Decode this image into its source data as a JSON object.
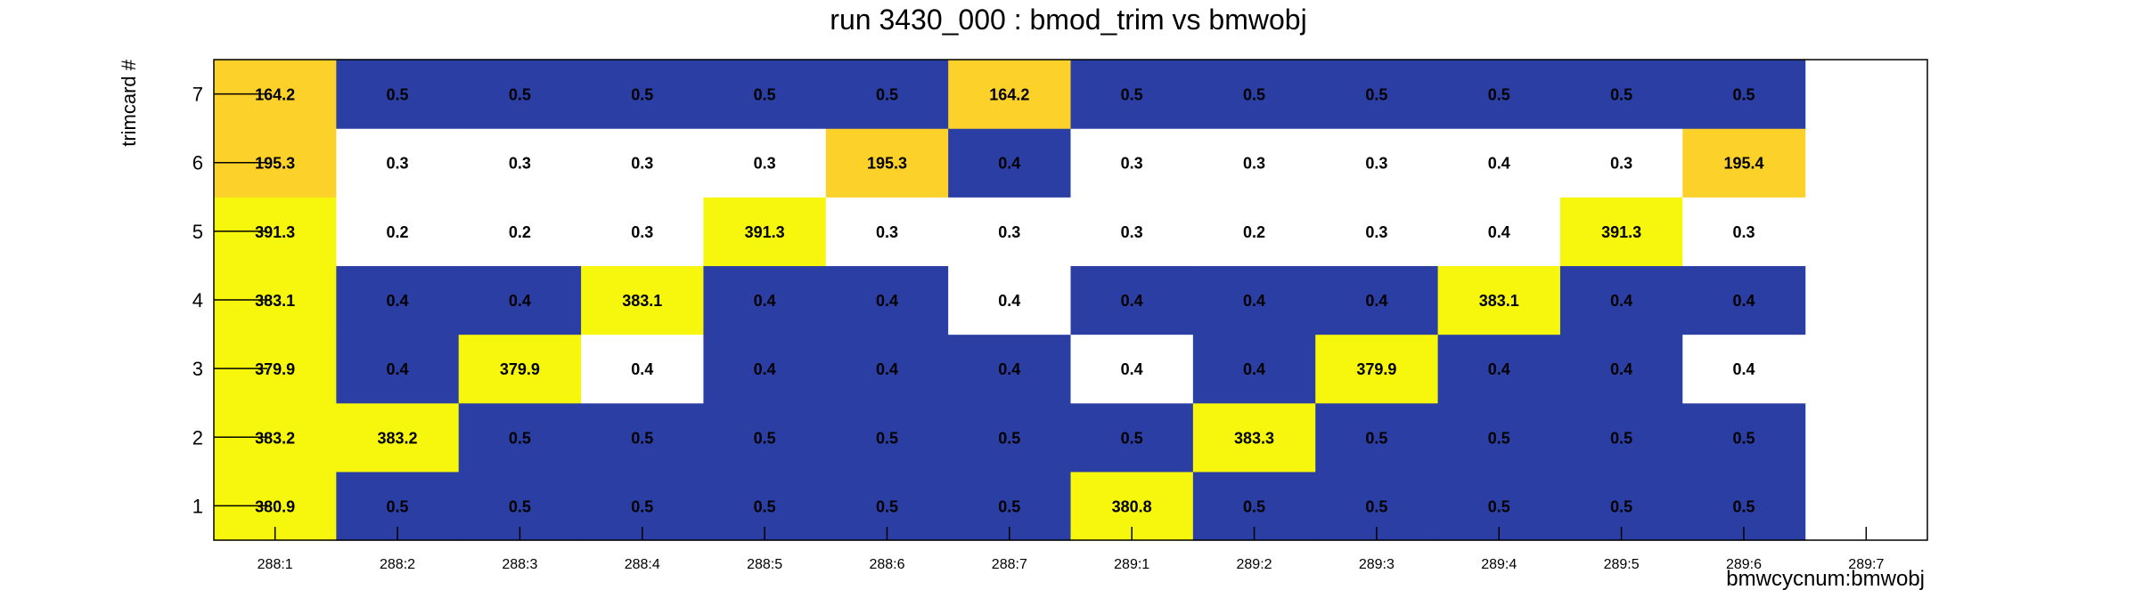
{
  "chart_data": {
    "type": "heatmap",
    "title": "run 3430_000 : bmod_trim vs bmwobj",
    "xlabel": "bmwcycnum:bmwobj",
    "ylabel": "trimcard #",
    "x_categories": [
      "288:1",
      "288:2",
      "288:3",
      "288:4",
      "288:5",
      "288:6",
      "288:7",
      "289:1",
      "289:2",
      "289:3",
      "289:4",
      "289:5",
      "289:6",
      "289:7"
    ],
    "y_categories": [
      "1",
      "2",
      "3",
      "4",
      "5",
      "6",
      "7"
    ],
    "grid": false,
    "legend": "none",
    "colors": {
      "low": "#2b3ea3",
      "white": "#ffffff",
      "mid": "#fcd12a",
      "high": "#f7f70d",
      "frame": "#000000"
    },
    "values": [
      [
        "380.9",
        "383.2",
        "379.9",
        "383.1",
        "391.3",
        "195.3",
        "164.2"
      ],
      [
        "0.5",
        "383.2",
        "0.4",
        "0.4",
        "0.2",
        "0.3",
        "0.5"
      ],
      [
        "0.5",
        "0.5",
        "379.9",
        "0.4",
        "0.2",
        "0.3",
        "0.5"
      ],
      [
        "0.5",
        "0.5",
        "0.4",
        "383.1",
        "0.3",
        "0.3",
        "0.5"
      ],
      [
        "0.5",
        "0.5",
        "0.4",
        "0.4",
        "391.3",
        "0.3",
        "0.5"
      ],
      [
        "0.5",
        "0.5",
        "0.4",
        "0.4",
        "0.3",
        "195.3",
        "0.5"
      ],
      [
        "0.5",
        "0.5",
        "0.4",
        "0.4",
        "0.3",
        "0.4",
        "164.2"
      ],
      [
        "380.8",
        "0.5",
        "0.4",
        "0.4",
        "0.3",
        "0.3",
        "0.5"
      ],
      [
        "0.5",
        "383.3",
        "0.4",
        "0.4",
        "0.2",
        "0.3",
        "0.5"
      ],
      [
        "0.5",
        "0.5",
        "379.9",
        "0.4",
        "0.3",
        "0.3",
        "0.5"
      ],
      [
        "0.5",
        "0.5",
        "0.4",
        "383.1",
        "0.4",
        "0.4",
        "0.5"
      ],
      [
        "0.5",
        "0.5",
        "0.4",
        "0.4",
        "391.3",
        "0.3",
        "0.5"
      ],
      [
        "0.5",
        "0.5",
        "0.4",
        "0.4",
        "0.3",
        "195.4",
        "0.5"
      ],
      [
        null,
        null,
        null,
        null,
        null,
        null,
        null
      ]
    ],
    "fill_classes": [
      [
        "high",
        "high",
        "high",
        "high",
        "high",
        "mid",
        "mid"
      ],
      [
        "low",
        "high",
        "low",
        "low",
        "white",
        "white",
        "low"
      ],
      [
        "low",
        "low",
        "high",
        "low",
        "white",
        "white",
        "low"
      ],
      [
        "low",
        "low",
        "white",
        "high",
        "white",
        "white",
        "low"
      ],
      [
        "low",
        "low",
        "low",
        "low",
        "high",
        "white",
        "low"
      ],
      [
        "low",
        "low",
        "low",
        "low",
        "white",
        "mid",
        "low"
      ],
      [
        "low",
        "low",
        "low",
        "white",
        "white",
        "low",
        "mid"
      ],
      [
        "high",
        "low",
        "white",
        "low",
        "white",
        "white",
        "low"
      ],
      [
        "low",
        "high",
        "low",
        "low",
        "white",
        "white",
        "low"
      ],
      [
        "low",
        "low",
        "high",
        "low",
        "white",
        "white",
        "low"
      ],
      [
        "low",
        "low",
        "low",
        "high",
        "white",
        "white",
        "low"
      ],
      [
        "low",
        "low",
        "low",
        "low",
        "high",
        "white",
        "low"
      ],
      [
        "low",
        "low",
        "white",
        "low",
        "white",
        "mid",
        "low"
      ],
      [
        null,
        null,
        null,
        null,
        null,
        null,
        null
      ]
    ]
  }
}
